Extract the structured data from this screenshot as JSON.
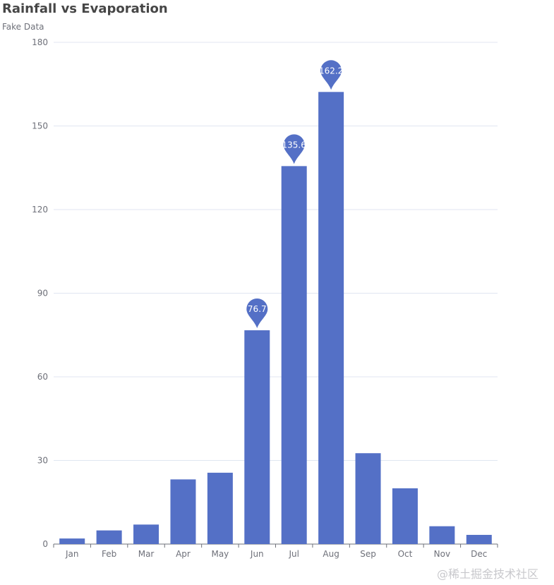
{
  "chart_data": {
    "type": "bar",
    "title": "Rainfall vs Evaporation",
    "subtitle": "Fake Data",
    "categories": [
      "Jan",
      "Feb",
      "Mar",
      "Apr",
      "May",
      "Jun",
      "Jul",
      "Aug",
      "Sep",
      "Oct",
      "Nov",
      "Dec"
    ],
    "series": [
      {
        "values": [
          2.0,
          4.9,
          7.0,
          23.2,
          25.6,
          76.7,
          135.6,
          162.2,
          32.6,
          20.0,
          6.4,
          3.3
        ],
        "mark_points": [
          {
            "category": "Jun",
            "value": 76.7
          },
          {
            "category": "Jul",
            "value": 135.6
          },
          {
            "category": "Aug",
            "value": 162.2
          }
        ]
      }
    ],
    "ylim": [
      0,
      180
    ],
    "yticks": [
      0,
      30,
      60,
      90,
      120,
      150,
      180
    ],
    "grid": true,
    "colors": {
      "bar": "#5470c6",
      "grid": "#e0e6f1",
      "axis": "#6e7079"
    }
  },
  "watermark": "@稀土掘金技术社区"
}
